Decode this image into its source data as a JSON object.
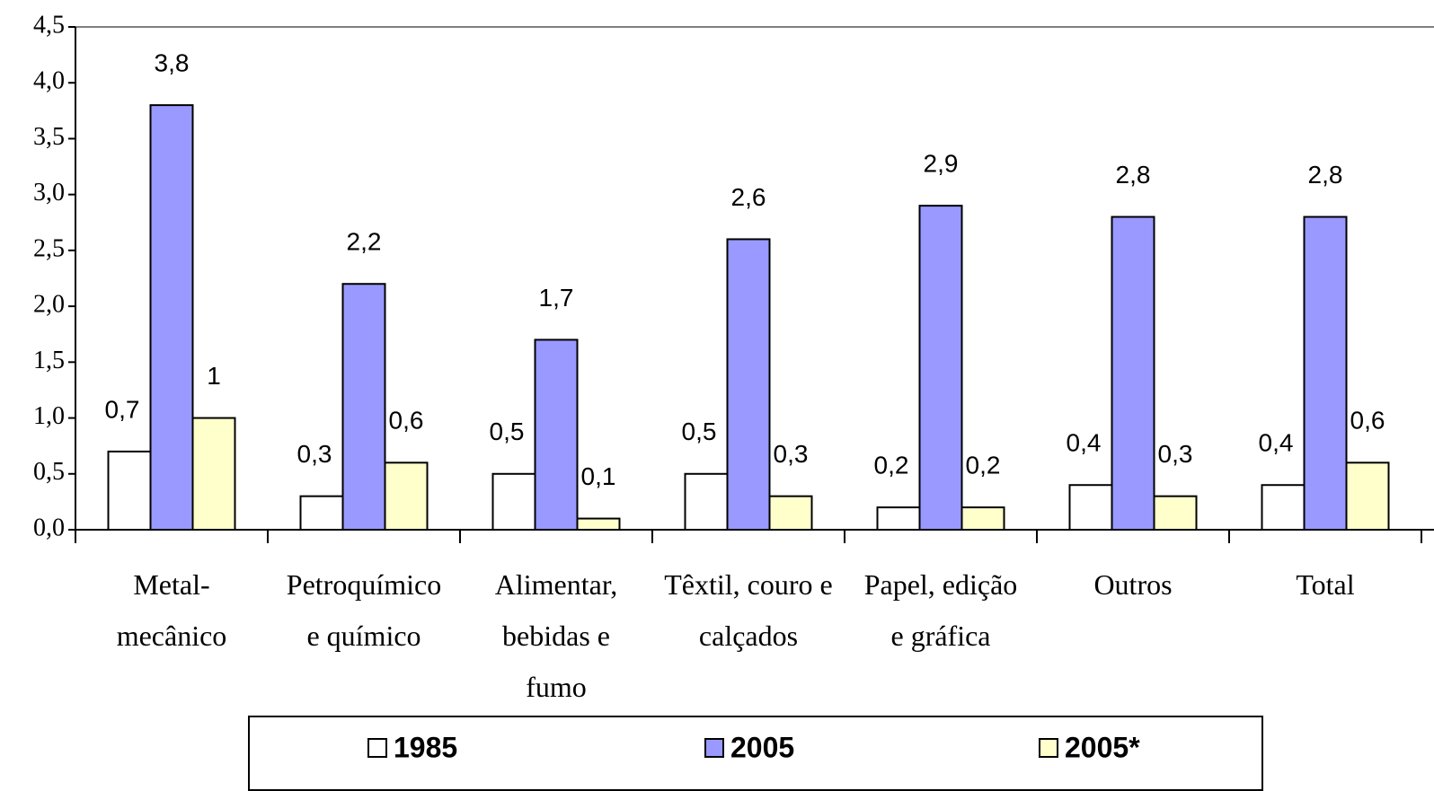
{
  "chart_data": {
    "type": "bar",
    "categories": [
      "Metal-\nmecânico",
      "Petroquímico\ne químico",
      "Alimentar,\nbebidas e\nfumo",
      "Têxtil, couro e\ncalçados",
      "Papel, edição\ne gráfica",
      "Outros",
      "Total"
    ],
    "series": [
      {
        "name": "1985",
        "color": "#ffffff",
        "values": [
          0.7,
          0.3,
          0.5,
          0.5,
          0.2,
          0.4,
          0.4
        ],
        "value_labels": [
          "0,7",
          "0,3",
          "0,5",
          "0,5",
          "0,2",
          "0,4",
          "0,4"
        ]
      },
      {
        "name": "2005",
        "color": "#9999ff",
        "values": [
          3.8,
          2.2,
          1.7,
          2.6,
          2.9,
          2.8,
          2.8
        ],
        "value_labels": [
          "3,8",
          "2,2",
          "1,7",
          "2,6",
          "2,9",
          "2,8",
          "2,8"
        ]
      },
      {
        "name": "2005*",
        "color": "#ffffcc",
        "values": [
          1,
          0.6,
          0.1,
          0.3,
          0.2,
          0.3,
          0.6
        ],
        "value_labels": [
          "1",
          "0,6",
          "0,1",
          "0,3",
          "0,2",
          "0,3",
          "0,6"
        ]
      }
    ],
    "ylim": [
      0,
      4.5
    ],
    "yticks": [
      {
        "value": 0,
        "label": "0,0"
      },
      {
        "value": 0.5,
        "label": "0,5"
      },
      {
        "value": 1,
        "label": "1,0"
      },
      {
        "value": 1.5,
        "label": "1,5"
      },
      {
        "value": 2,
        "label": "2,0"
      },
      {
        "value": 2.5,
        "label": "2,5"
      },
      {
        "value": 3,
        "label": "3,0"
      },
      {
        "value": 3.5,
        "label": "3,5"
      },
      {
        "value": 4,
        "label": "4,0"
      },
      {
        "value": 4.5,
        "label": "4,5"
      }
    ],
    "legend": "bottom"
  }
}
